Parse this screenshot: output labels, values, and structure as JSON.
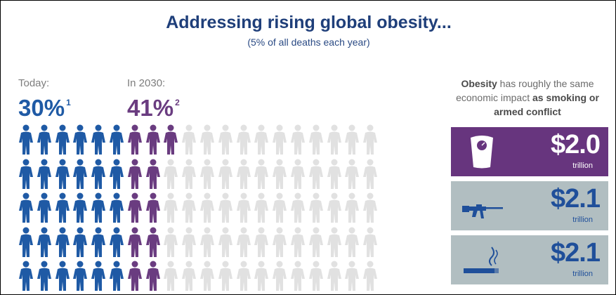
{
  "header": {
    "title": "Addressing rising global obesity...",
    "subtitle": "(5% of all deaths each year)"
  },
  "stats": {
    "today_label": "Today:",
    "today_value": "30%",
    "today_ref": "1",
    "future_label": "In 2030:",
    "future_value": "41%",
    "future_ref": "2"
  },
  "pictogram": {
    "columns": 20,
    "rows": 5,
    "blue_columns": 6,
    "purple_columns_full": 2,
    "purple_top_row_columns": 3,
    "colors": {
      "blue": "#1f5aa5",
      "purple": "#6a3c80",
      "gray": "#e1e1e1"
    }
  },
  "comparison": {
    "intro_bold_1": "Obesity",
    "intro_text_1": " has roughly the same economic impact ",
    "intro_bold_2": "as smoking or armed conflict",
    "cards": [
      {
        "icon": "scale-icon",
        "amount": "$2.0",
        "unit": "trillion"
      },
      {
        "icon": "rifle-icon",
        "amount": "$2.1",
        "unit": "trillion"
      },
      {
        "icon": "cigarette-icon",
        "amount": "$2.1",
        "unit": "trillion"
      }
    ]
  },
  "colors": {
    "title": "#1f3f7a",
    "blue_value": "#1f5aa5",
    "purple_value": "#6a3c80",
    "card_purple": "#67357e",
    "card_gray": "#b1bec1"
  }
}
